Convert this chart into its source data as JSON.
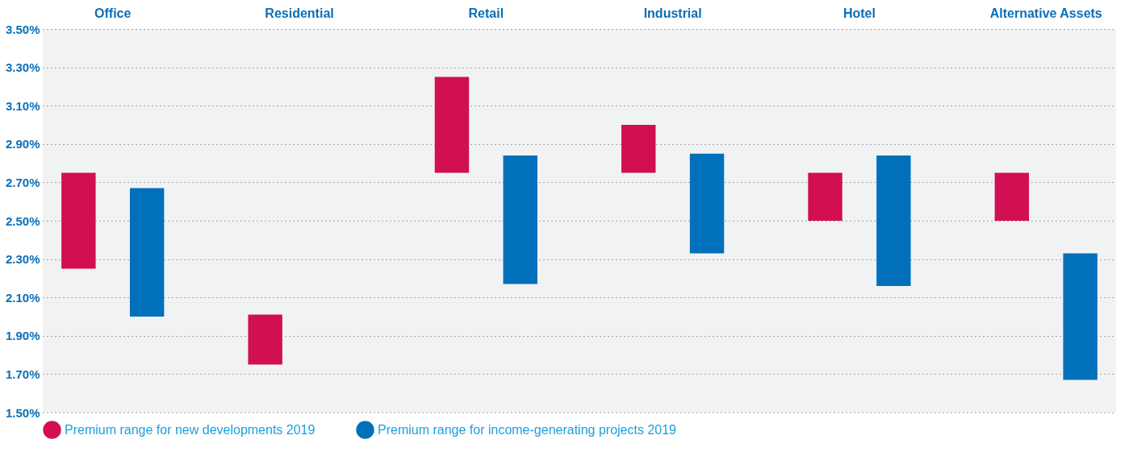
{
  "chart_data": {
    "type": "bar",
    "categories": [
      "Office",
      "Residential",
      "Retail",
      "Industrial",
      "Hotel",
      "Alternative Assets"
    ],
    "series": [
      {
        "name": "Premium range for new developments 2019",
        "color": "#d10f52",
        "base": [
          2.25,
          1.75,
          2.75,
          2.75,
          2.5,
          2.5
        ],
        "values": [
          0.5,
          0.26,
          0.5,
          0.25,
          0.25,
          0.25
        ]
      },
      {
        "name": "Premium range for income-generating projects 2019",
        "color": "#0070ba",
        "base": [
          2.0,
          null,
          2.17,
          2.33,
          2.16,
          1.67
        ],
        "values": [
          0.67,
          null,
          0.67,
          0.52,
          0.68,
          0.66
        ]
      }
    ],
    "ylim": [
      1.5,
      3.5
    ],
    "yticks": [
      {
        "value": 1.5,
        "label": "1.50%"
      },
      {
        "value": 1.7,
        "label": "1.70%"
      },
      {
        "value": 1.9,
        "label": "1.90%"
      },
      {
        "value": 2.1,
        "label": "2.10%"
      },
      {
        "value": 2.3,
        "label": "2.30%"
      },
      {
        "value": 2.5,
        "label": "2.50%"
      },
      {
        "value": 2.7,
        "label": "2.70%"
      },
      {
        "value": 2.9,
        "label": "2.90%"
      },
      {
        "value": 3.1,
        "label": "3.10%"
      },
      {
        "value": 3.3,
        "label": "3.30%"
      },
      {
        "value": 3.5,
        "label": "3.50%"
      }
    ],
    "grid": "y",
    "legend": "bottom"
  }
}
